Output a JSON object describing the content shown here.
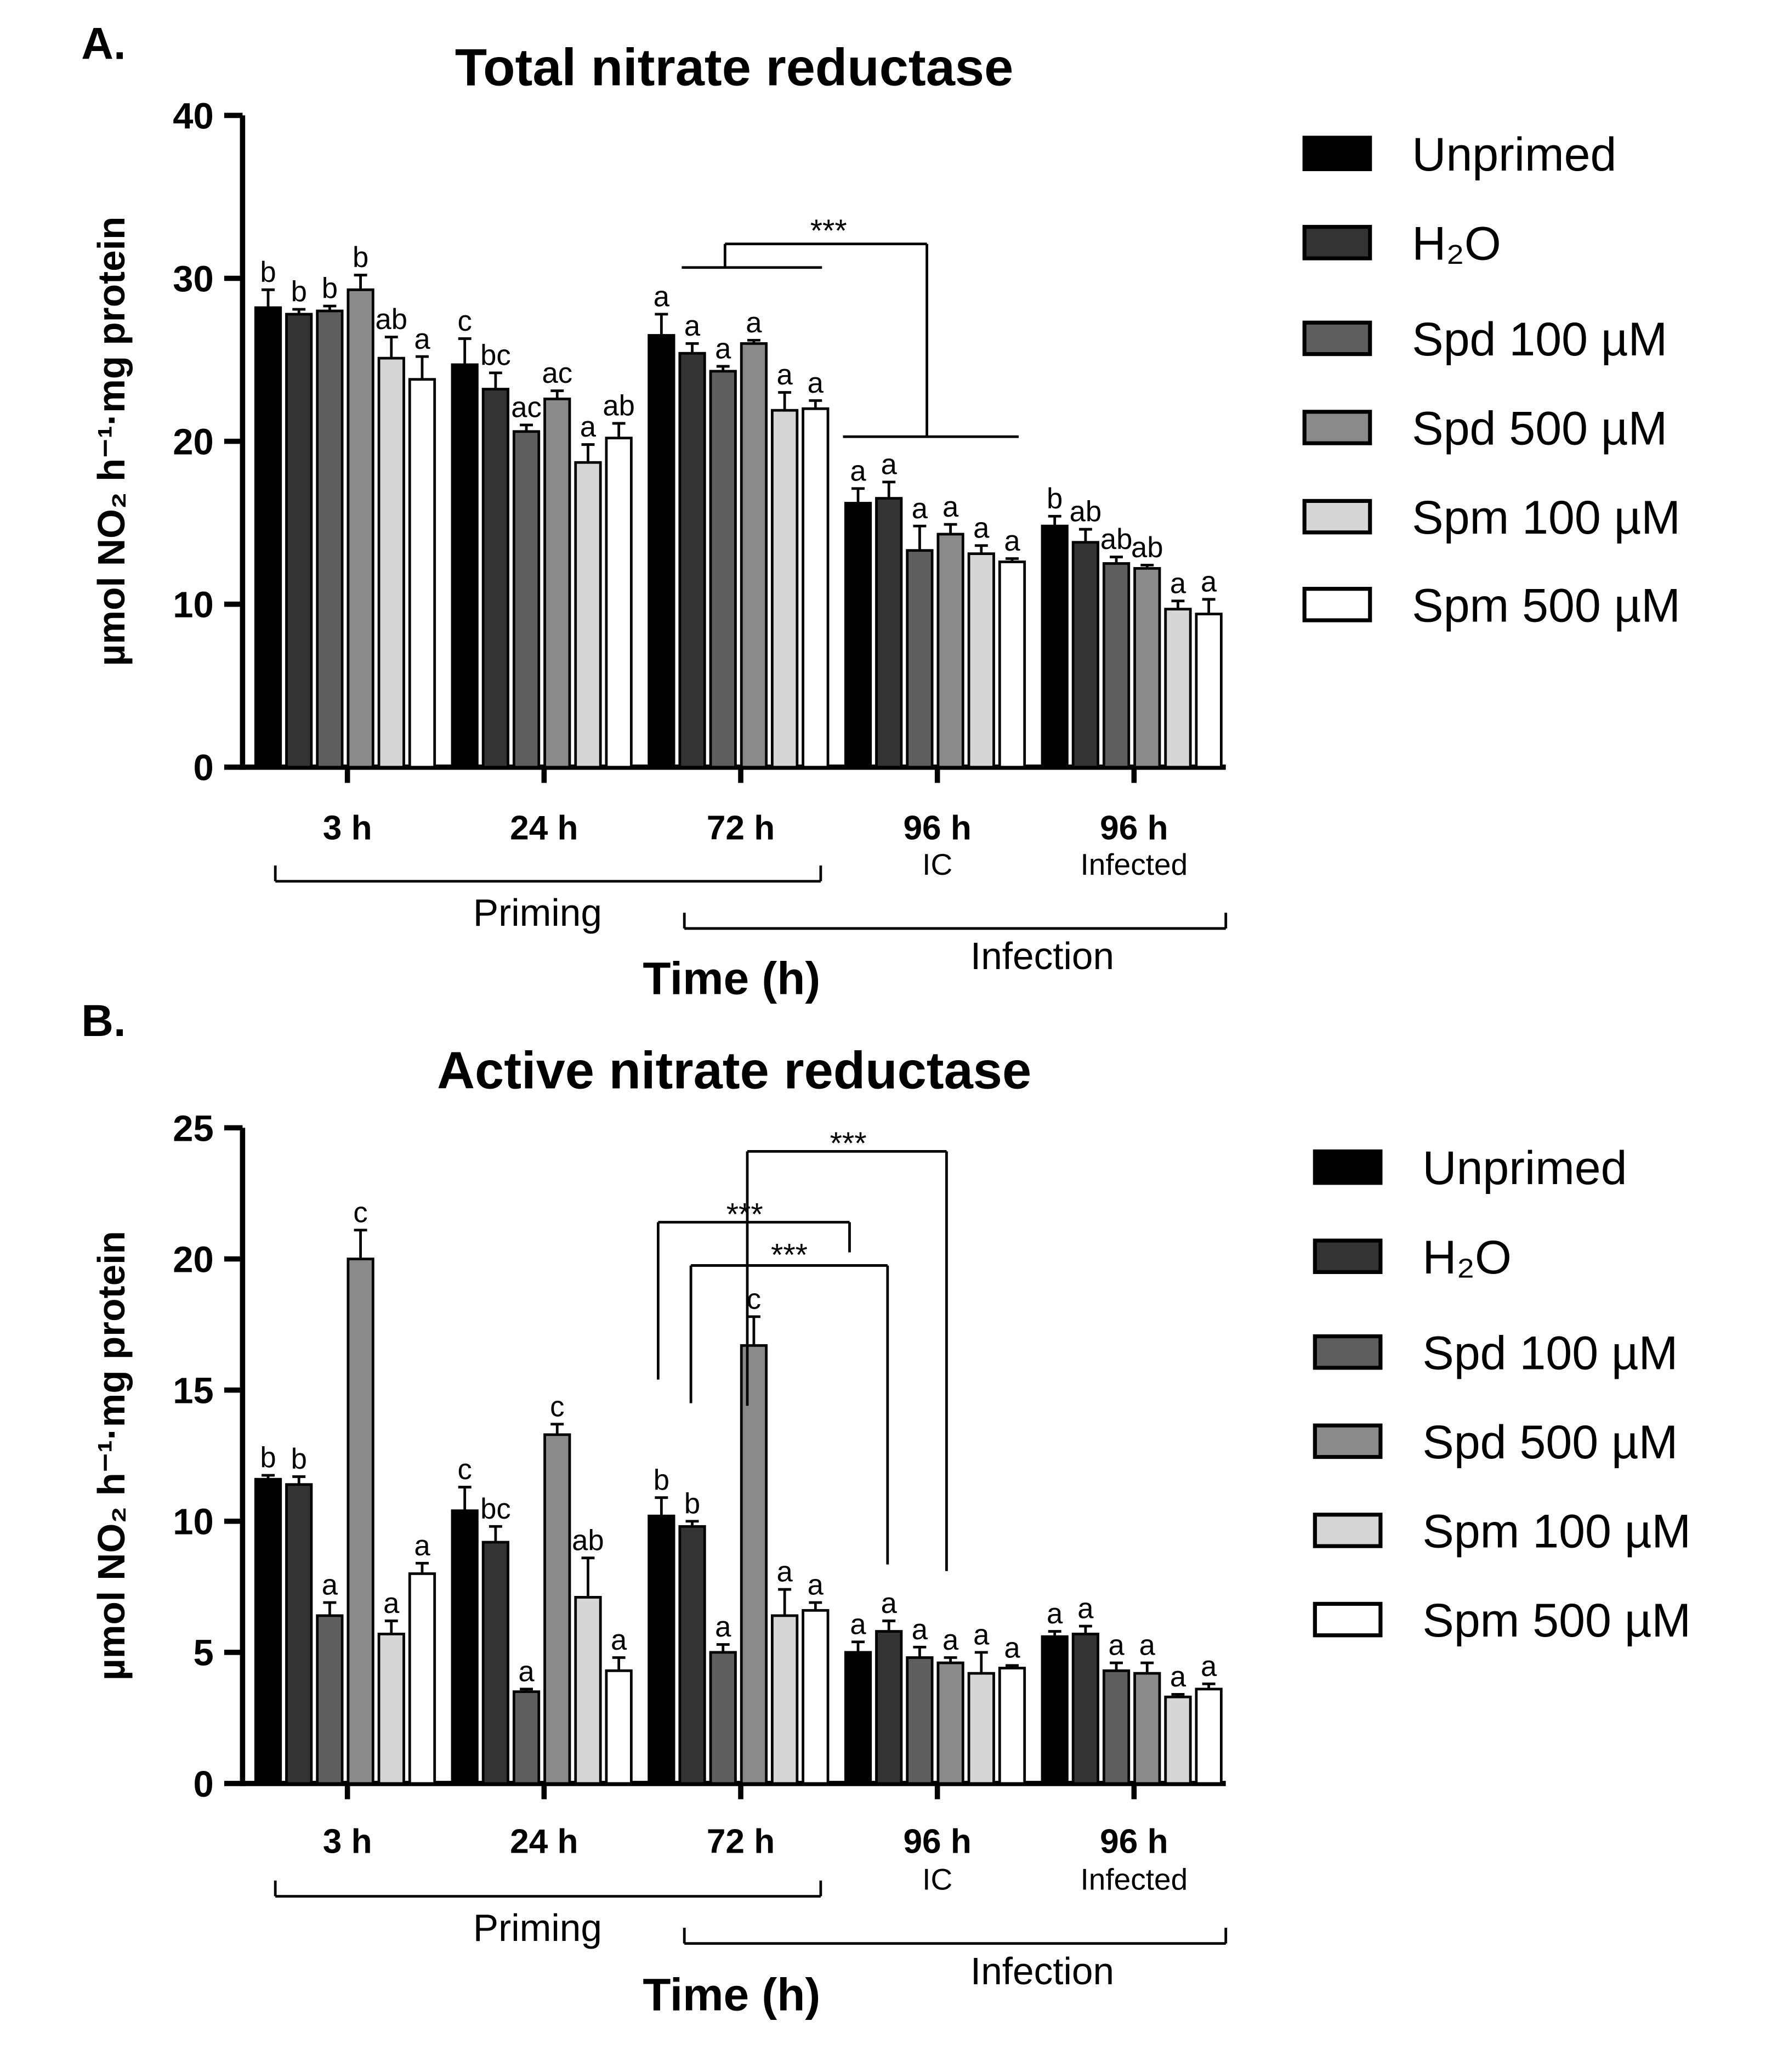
{
  "legend": [
    {
      "label": "Unprimed",
      "color": "#000000"
    },
    {
      "label": "H₂O",
      "color": "#333333"
    },
    {
      "label": "Spd 100 µM",
      "color": "#5e5e5e"
    },
    {
      "label": "Spd 500 µM",
      "color": "#8a8a8a"
    },
    {
      "label": "Spm 100 µM",
      "color": "#d6d6d6"
    },
    {
      "label": "Spm 500 µM",
      "color": "#ffffff"
    }
  ],
  "chart_data": [
    {
      "type": "bar",
      "panel": "A.",
      "title": "Total nitrate reductase",
      "xlabel": "Time (h)",
      "ylabel": "µmol NO₂ h⁻¹·mg protein",
      "ylim": [
        0,
        40
      ],
      "yticks": [
        "0",
        "10",
        "20",
        "30",
        "40"
      ],
      "categories": [
        {
          "label": "3 h",
          "sub": ""
        },
        {
          "label": "24 h",
          "sub": ""
        },
        {
          "label": "72 h",
          "sub": ""
        },
        {
          "label": "96 h",
          "sub": "IC"
        },
        {
          "label": "96 h",
          "sub": "Infected"
        }
      ],
      "groups": {
        "priming": "Priming",
        "infection": "Infection"
      },
      "series": [
        {
          "name": "Unprimed",
          "values": [
            28.2,
            24.7,
            26.5,
            16.2,
            14.8
          ],
          "errors": [
            1.1,
            1.6,
            1.3,
            0.9,
            0.6
          ],
          "letters": [
            "b",
            "c",
            "a",
            "a",
            "b"
          ]
        },
        {
          "name": "H₂O",
          "values": [
            27.8,
            23.2,
            25.4,
            16.5,
            13.8
          ],
          "errors": [
            0.3,
            1.0,
            0.6,
            1.0,
            0.8
          ],
          "letters": [
            "b",
            "bc",
            "a",
            "a",
            "ab"
          ]
        },
        {
          "name": "Spd 100 µM",
          "values": [
            28.0,
            20.6,
            24.3,
            13.3,
            12.5
          ],
          "errors": [
            0.3,
            0.4,
            0.3,
            1.5,
            0.4
          ],
          "letters": [
            "b",
            "ac",
            "a",
            "a",
            "ab"
          ]
        },
        {
          "name": "Spd 500 µM",
          "values": [
            29.3,
            22.6,
            26.0,
            14.3,
            12.2
          ],
          "errors": [
            0.9,
            0.5,
            0.2,
            0.6,
            0.2
          ],
          "letters": [
            "b",
            "ac",
            "a",
            "a",
            "ab"
          ]
        },
        {
          "name": "Spm 100 µM",
          "values": [
            25.1,
            18.7,
            21.9,
            13.1,
            9.7
          ],
          "errors": [
            1.3,
            1.1,
            1.1,
            0.5,
            0.5
          ],
          "letters": [
            "ab",
            "a",
            "a",
            "a",
            "a"
          ]
        },
        {
          "name": "Spm 500 µM",
          "values": [
            23.8,
            20.2,
            22.0,
            12.6,
            9.4
          ],
          "errors": [
            1.4,
            0.9,
            0.5,
            0.2,
            0.9
          ],
          "letters": [
            "a",
            "ab",
            "a",
            "a",
            "a"
          ]
        }
      ],
      "significance": [
        {
          "label": "***",
          "from": "72 h (all)",
          "to": "96 h IC (all)"
        }
      ]
    },
    {
      "type": "bar",
      "panel": "B.",
      "title": "Active nitrate reductase",
      "xlabel": "Time (h)",
      "ylabel": "µmol NO₂ h⁻¹·mg protein",
      "ylim": [
        0,
        25
      ],
      "yticks": [
        "0",
        "5",
        "10",
        "15",
        "20",
        "25"
      ],
      "categories": [
        {
          "label": "3 h",
          "sub": ""
        },
        {
          "label": "24 h",
          "sub": ""
        },
        {
          "label": "72 h",
          "sub": ""
        },
        {
          "label": "96 h",
          "sub": "IC"
        },
        {
          "label": "96 h",
          "sub": "Infected"
        }
      ],
      "groups": {
        "priming": "Priming",
        "infection": "Infection"
      },
      "series": [
        {
          "name": "Unprimed",
          "values": [
            11.6,
            10.4,
            10.2,
            5.0,
            5.6
          ],
          "errors": [
            0.15,
            0.9,
            0.7,
            0.4,
            0.2
          ],
          "letters": [
            "b",
            "c",
            "b",
            "a",
            "a"
          ]
        },
        {
          "name": "H₂O",
          "values": [
            11.4,
            9.2,
            9.8,
            5.8,
            5.7
          ],
          "errors": [
            0.3,
            0.6,
            0.2,
            0.4,
            0.3
          ],
          "letters": [
            "b",
            "bc",
            "b",
            "a",
            "a"
          ]
        },
        {
          "name": "Spd 100 µM",
          "values": [
            6.4,
            3.5,
            5.0,
            4.8,
            4.3
          ],
          "errors": [
            0.5,
            0.1,
            0.3,
            0.4,
            0.3
          ],
          "letters": [
            "a",
            "a",
            "a",
            "a",
            "a"
          ]
        },
        {
          "name": "Spd 500 µM",
          "values": [
            20.0,
            13.3,
            16.7,
            4.6,
            4.2
          ],
          "errors": [
            1.1,
            0.4,
            1.1,
            0.2,
            0.4
          ],
          "letters": [
            "c",
            "c",
            "c",
            "a",
            "a"
          ]
        },
        {
          "name": "Spm 100 µM",
          "values": [
            5.7,
            7.1,
            6.4,
            4.2,
            3.3
          ],
          "errors": [
            0.5,
            1.5,
            1.0,
            0.8,
            0.1
          ],
          "letters": [
            "a",
            "ab",
            "a",
            "a",
            "a"
          ]
        },
        {
          "name": "Spm 500 µM",
          "values": [
            8.0,
            4.3,
            6.6,
            4.4,
            3.6
          ],
          "errors": [
            0.4,
            0.5,
            0.3,
            0.1,
            0.2
          ],
          "letters": [
            "a",
            "a",
            "a",
            "a",
            "a"
          ]
        }
      ],
      "significance": [
        {
          "label": "***",
          "from": "72 h Spd 500 µM",
          "to": "96 h IC Spd 500 µM"
        },
        {
          "label": "***",
          "from": "72 h Unprimed",
          "to": "96 h IC Unprimed"
        },
        {
          "label": "***",
          "from": "72 h H₂O",
          "to": "96 h IC H₂O"
        }
      ]
    }
  ]
}
